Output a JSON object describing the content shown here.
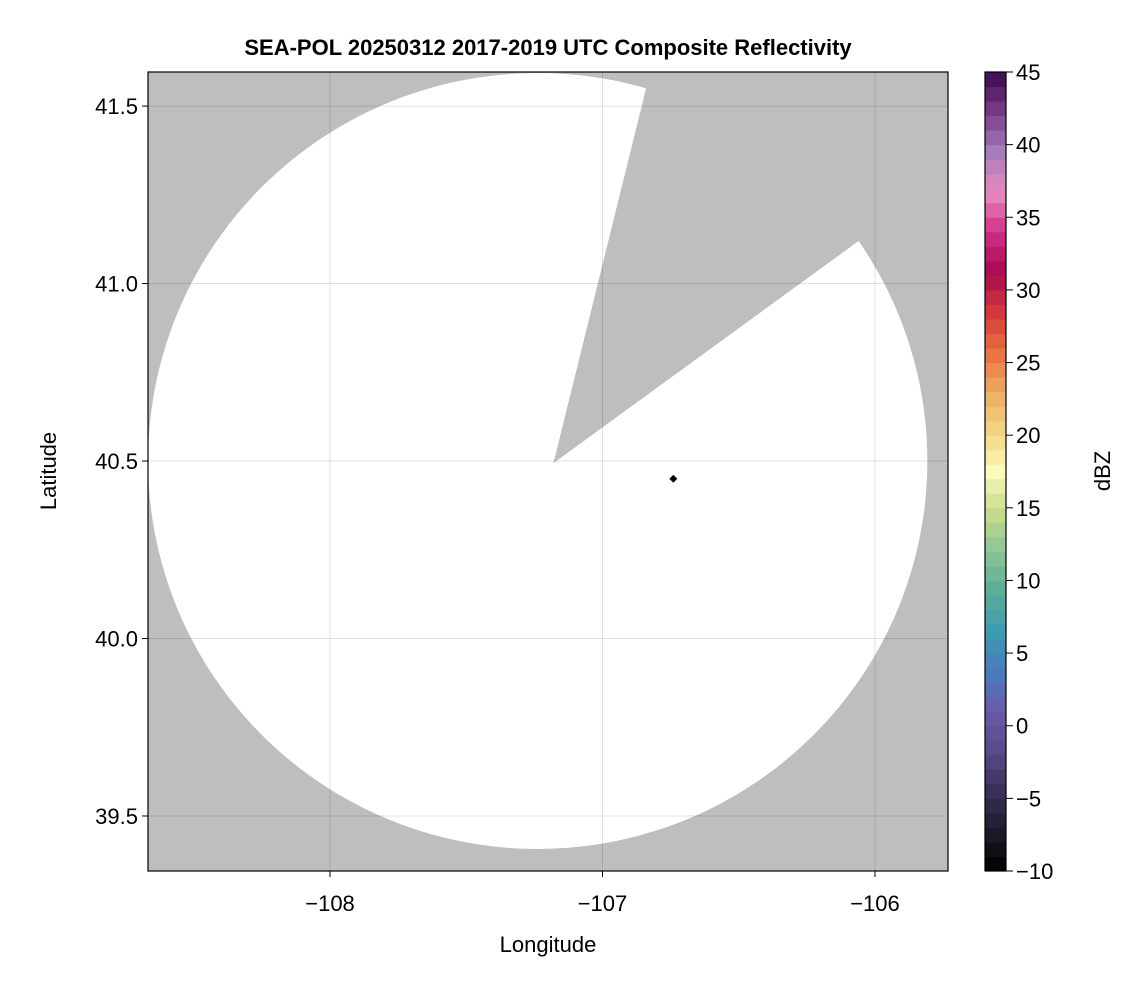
{
  "chart_data": {
    "type": "heatmap",
    "title": "SEA-POL 20250312 2017-2019 UTC Composite Reflectivity",
    "xlabel": "Longitude",
    "ylabel": "Latitude",
    "xlim": [
      -108.668,
      -105.732
    ],
    "ylim": [
      39.345,
      41.596
    ],
    "xticks": [
      -108,
      -107,
      -106
    ],
    "xtick_labels": [
      "−108",
      "−107",
      "−106"
    ],
    "yticks": [
      39.5,
      40.0,
      40.5,
      41.0,
      41.5
    ],
    "ytick_labels": [
      "39.5",
      "40.0",
      "40.5",
      "41.0",
      "41.5"
    ],
    "grid": true,
    "missing_color": "#bebebe",
    "background_fill_color": "#ffffff",
    "radar_domain": {
      "center": [
        -107.2,
        40.47
      ],
      "radius_lon": 1.43,
      "radius_lat": 1.093,
      "blocked_sector": {
        "apex": [
          -107.18,
          40.494
        ],
        "edge1": [
          -106.84,
          41.55
        ],
        "edge2": [
          -106.06,
          41.12
        ]
      }
    },
    "marker": {
      "lon": -106.74,
      "lat": 40.45,
      "color": "#000000",
      "shape": "diamond"
    },
    "colorbar": {
      "label": "dBZ",
      "range": [
        -10,
        45
      ],
      "bin_width": 1,
      "ticks": [
        -10,
        -5,
        0,
        5,
        10,
        15,
        20,
        25,
        30,
        35,
        40,
        45
      ],
      "tick_labels": [
        "−10",
        "−5",
        "0",
        "5",
        "10",
        "15",
        "20",
        "25",
        "30",
        "35",
        "40",
        "45"
      ],
      "colors": [
        "#000000",
        "#1e1a2b",
        "#3a3057",
        "#5a4a8a",
        "#6a5aa8",
        "#4b7bbf",
        "#3d9bb0",
        "#5aad98",
        "#8cc494",
        "#c8dc8c",
        "#fbf9bc",
        "#f2d684",
        "#ecab62",
        "#e8703f",
        "#d2393d",
        "#a8094f",
        "#cf3088",
        "#e98bc0",
        "#a57cbc",
        "#7a3c8c",
        "#3a0a4a"
      ]
    }
  }
}
